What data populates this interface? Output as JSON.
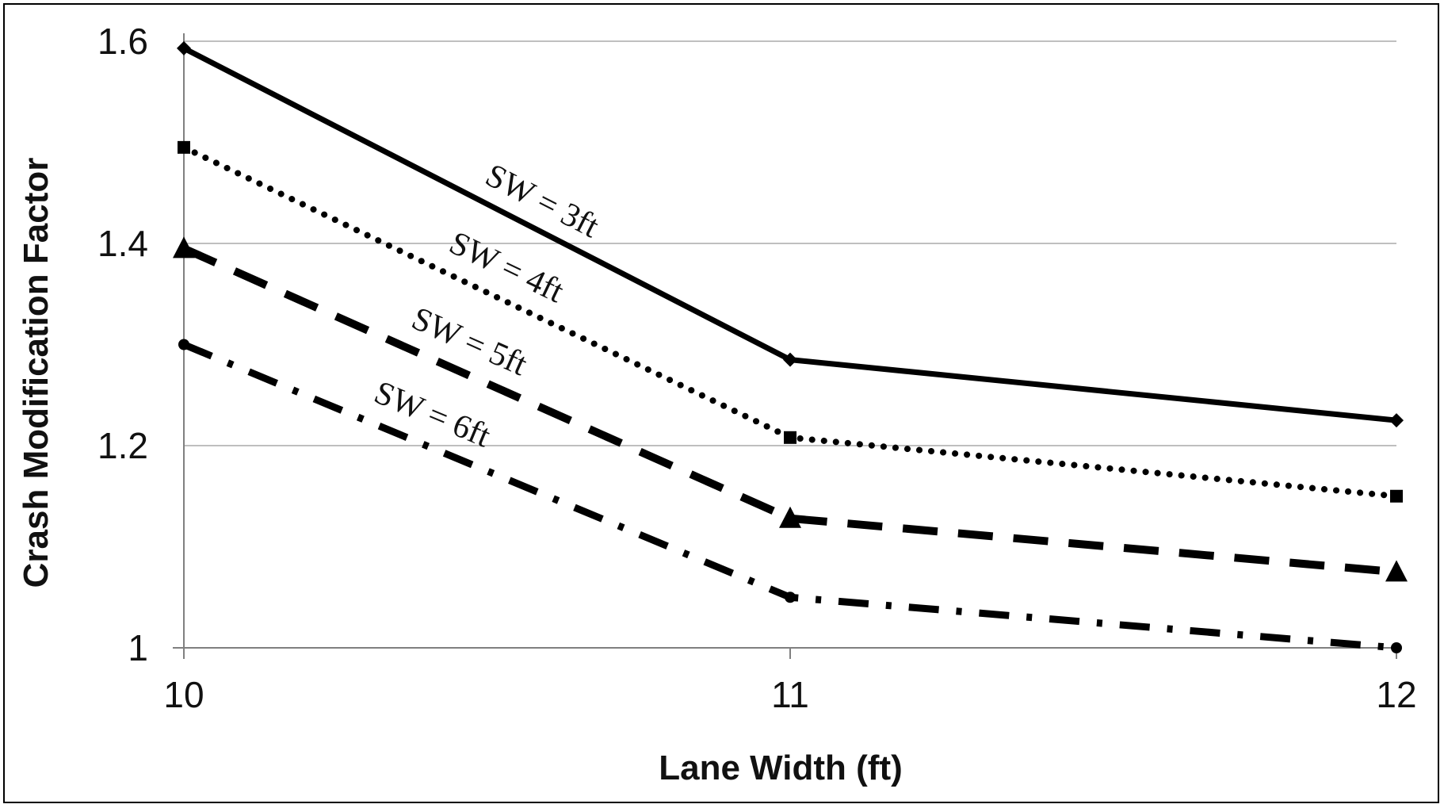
{
  "chart_data": {
    "type": "line",
    "xlabel": "Lane Width (ft)",
    "ylabel": "Crash Modification Factor",
    "x": [
      10,
      11,
      12
    ],
    "xticks": [
      "10",
      "11",
      "12"
    ],
    "ylim": [
      1.0,
      1.6
    ],
    "yticks": [
      "1",
      "1.2",
      "1.4",
      "1.6"
    ],
    "grid": "horizontal",
    "series": [
      {
        "name": "SW = 3ft",
        "values": [
          1.593,
          1.285,
          1.225
        ],
        "dash": "solid",
        "marker": "diamond"
      },
      {
        "name": "SW = 4ft",
        "values": [
          1.495,
          1.208,
          1.15
        ],
        "dash": "dotted",
        "marker": "square"
      },
      {
        "name": "SW = 5ft",
        "values": [
          1.395,
          1.128,
          1.075
        ],
        "dash": "dashed",
        "marker": "triangle"
      },
      {
        "name": "SW = 6ft",
        "values": [
          1.3,
          1.05,
          1.0
        ],
        "dash": "dashdot",
        "marker": "circle"
      }
    ],
    "colors": {
      "line": "#000000",
      "grid": "#bfbfbf",
      "axis": "#808080"
    }
  }
}
